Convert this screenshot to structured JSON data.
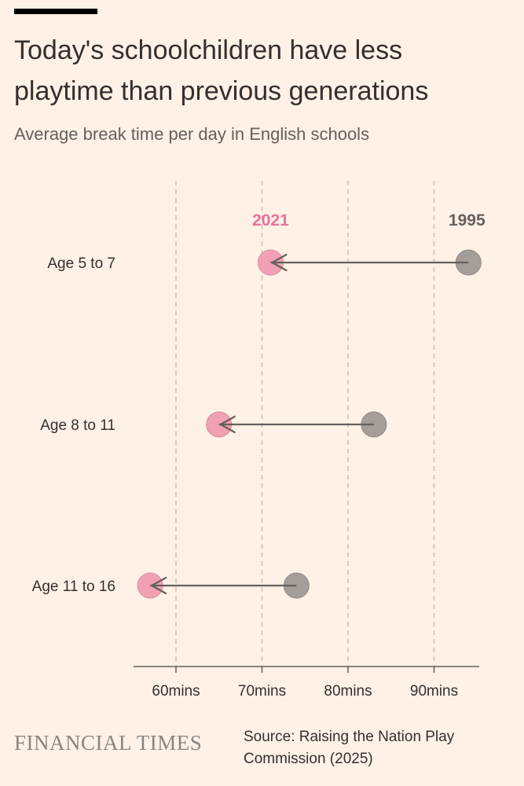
{
  "title": "Today's schoolchildren have less playtime than previous generations",
  "subtitle": "Average break time per day in English schools",
  "source": "Source: Raising the Nation Play Commission (2025)",
  "brand": "FINANCIAL TIMES",
  "colors": {
    "background": "#fff1e5",
    "series_2021": "#f2a1b5",
    "series_1995": "#a39e9a",
    "label_2021": "#e8729b",
    "label_1995": "#66605c",
    "arrow": "#66605c",
    "grid": "#c9bfb6"
  },
  "chart_data": {
    "type": "dot-arrow",
    "categories": [
      "Age 5 to 7",
      "Age 8 to 11",
      "Age 11 to 16"
    ],
    "series": [
      {
        "name": "1995",
        "values": [
          94,
          83,
          74
        ]
      },
      {
        "name": "2021",
        "values": [
          71,
          65,
          57
        ]
      }
    ],
    "xlim": [
      55,
      95
    ],
    "x_ticks": [
      60,
      70,
      80,
      90
    ],
    "x_tick_labels": [
      "60mins",
      "70mins",
      "80mins",
      "90mins"
    ],
    "grid": true,
    "series_label_placement": "above-first-row"
  }
}
